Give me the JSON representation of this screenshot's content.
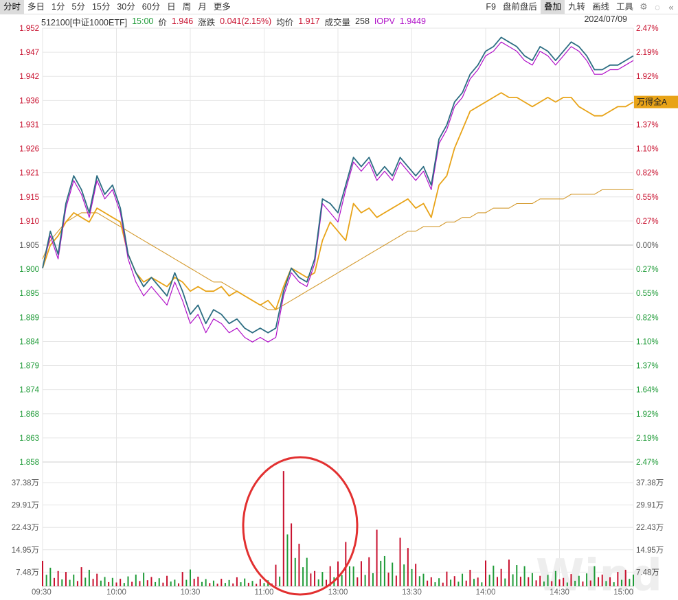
{
  "toolbar": {
    "left": [
      "分时",
      "多日",
      "1分",
      "5分",
      "15分",
      "30分",
      "60分",
      "日",
      "周",
      "月",
      "更多"
    ],
    "right": [
      "F9",
      "盘前盘后",
      "叠加",
      "九转",
      "画线",
      "工具"
    ],
    "active_left": "分时",
    "active_right": "叠加",
    "icons": [
      "gear-icon",
      "circle-icon",
      "collapse-double-chevron-icon"
    ]
  },
  "info": {
    "code_name": "512100[中证1000ETF]",
    "time": "15:00",
    "price_label": "价",
    "price": "1.946",
    "change_label": "涨跌",
    "change": "0.041(2.15%)",
    "avg_label": "均价",
    "avg": "1.917",
    "volume_label": "成交量",
    "volume": "258",
    "iopv_label": "IOPV",
    "iopv": "1.9449",
    "date": "2024/07/09"
  },
  "overlay_tag": "万得全A",
  "watermark": "Wind",
  "colors": {
    "price": "#2c6d82",
    "iopv": "#b010c8",
    "overlay": "#e8a317",
    "average": "#d49a2e",
    "up": "#c8102e",
    "down": "#1f9b38",
    "grid": "#e6e6e6",
    "annotation": "#e23030"
  },
  "chart_data": {
    "type": "line",
    "y_left_ticks": [
      "1.952",
      "1.947",
      "1.942",
      "1.936",
      "1.931",
      "1.926",
      "1.921",
      "1.915",
      "1.910",
      "1.905",
      "1.900",
      "1.895",
      "1.889",
      "1.884",
      "1.879",
      "1.874",
      "1.868",
      "1.863",
      "1.858"
    ],
    "y_right_ticks": [
      "2.47%",
      "2.19%",
      "1.92%",
      "1.64%",
      "1.37%",
      "1.10%",
      "0.82%",
      "0.55%",
      "0.27%",
      "0.00%",
      "0.27%",
      "0.55%",
      "0.82%",
      "1.10%",
      "1.37%",
      "1.64%",
      "1.92%",
      "2.19%",
      "2.47%"
    ],
    "ylim": [
      1.858,
      1.952
    ],
    "reference_price": 1.905,
    "x_ticks": [
      "09:30",
      "10:00",
      "10:30",
      "11:00",
      "13:00",
      "13:30",
      "14:00",
      "14:30",
      "15:00"
    ],
    "volume_ticks": [
      "37.38万",
      "29.91万",
      "22.43万",
      "14.95万",
      "7.48万"
    ],
    "volume_max": 37.38,
    "series": [
      {
        "values": [
          1.9,
          1.908,
          1.903,
          1.914,
          1.92,
          1.917,
          1.912,
          1.92,
          1.916,
          1.918,
          1.913,
          1.903,
          1.899,
          1.896,
          1.898,
          1.896,
          1.894,
          1.899,
          1.895,
          1.89,
          1.892,
          1.888,
          1.891,
          1.89,
          1.888,
          1.889,
          1.887,
          1.886,
          1.887,
          1.886,
          1.887,
          1.895,
          1.9,
          1.898,
          1.897,
          1.902,
          1.915,
          1.914,
          1.912,
          1.918,
          1.924,
          1.922,
          1.924,
          1.92,
          1.922,
          1.92,
          1.924,
          1.922,
          1.92,
          1.922,
          1.918,
          1.928,
          1.931,
          1.936,
          1.938,
          1.942,
          1.944,
          1.947,
          1.948,
          1.95,
          1.949,
          1.948,
          1.946,
          1.945,
          1.948,
          1.947,
          1.945,
          1.947,
          1.949,
          1.948,
          1.946,
          1.943,
          1.943,
          1.944,
          1.944,
          1.945,
          1.946
        ]
      },
      {
        "values": [
          1.9,
          1.907,
          1.902,
          1.913,
          1.919,
          1.916,
          1.911,
          1.919,
          1.915,
          1.917,
          1.912,
          1.902,
          1.897,
          1.894,
          1.896,
          1.894,
          1.892,
          1.897,
          1.893,
          1.888,
          1.89,
          1.886,
          1.889,
          1.888,
          1.886,
          1.887,
          1.885,
          1.884,
          1.885,
          1.884,
          1.885,
          1.894,
          1.899,
          1.897,
          1.896,
          1.901,
          1.914,
          1.912,
          1.91,
          1.917,
          1.923,
          1.921,
          1.923,
          1.919,
          1.921,
          1.919,
          1.923,
          1.921,
          1.919,
          1.921,
          1.917,
          1.927,
          1.93,
          1.935,
          1.937,
          1.941,
          1.943,
          1.946,
          1.947,
          1.949,
          1.948,
          1.947,
          1.945,
          1.944,
          1.947,
          1.946,
          1.944,
          1.946,
          1.948,
          1.947,
          1.945,
          1.942,
          1.942,
          1.943,
          1.943,
          1.944,
          1.945
        ]
      },
      {
        "values": [
          1.9,
          1.905,
          1.907,
          1.91,
          1.912,
          1.911,
          1.91,
          1.913,
          1.912,
          1.911,
          1.91,
          1.903,
          1.899,
          1.897,
          1.898,
          1.897,
          1.896,
          1.898,
          1.897,
          1.895,
          1.896,
          1.895,
          1.895,
          1.896,
          1.894,
          1.895,
          1.894,
          1.893,
          1.892,
          1.893,
          1.891,
          1.896,
          1.9,
          1.899,
          1.898,
          1.899,
          1.906,
          1.91,
          1.908,
          1.906,
          1.914,
          1.912,
          1.913,
          1.911,
          1.912,
          1.913,
          1.914,
          1.915,
          1.913,
          1.914,
          1.911,
          1.918,
          1.92,
          1.926,
          1.93,
          1.934,
          1.935,
          1.936,
          1.937,
          1.938,
          1.937,
          1.937,
          1.936,
          1.935,
          1.936,
          1.937,
          1.936,
          1.937,
          1.937,
          1.935,
          1.934,
          1.933,
          1.933,
          1.934,
          1.935,
          1.935,
          1.936
        ]
      },
      {
        "values": [
          1.902,
          1.906,
          1.908,
          1.91,
          1.911,
          1.912,
          1.912,
          1.912,
          1.911,
          1.91,
          1.909,
          1.908,
          1.907,
          1.906,
          1.905,
          1.904,
          1.903,
          1.902,
          1.901,
          1.9,
          1.899,
          1.898,
          1.897,
          1.897,
          1.896,
          1.895,
          1.894,
          1.893,
          1.892,
          1.891,
          1.891,
          1.892,
          1.893,
          1.894,
          1.895,
          1.896,
          1.897,
          1.898,
          1.899,
          1.9,
          1.901,
          1.902,
          1.903,
          1.904,
          1.905,
          1.906,
          1.907,
          1.908,
          1.908,
          1.909,
          1.909,
          1.909,
          1.91,
          1.91,
          1.911,
          1.911,
          1.912,
          1.912,
          1.913,
          1.913,
          1.913,
          1.914,
          1.914,
          1.914,
          1.915,
          1.915,
          1.915,
          1.915,
          1.916,
          1.916,
          1.916,
          1.916,
          1.917,
          1.917,
          1.917,
          1.917,
          1.917
        ]
      }
    ],
    "volumes": [
      8.5,
      6.2,
      5.1,
      4.8,
      3.9,
      6.4,
      5.5,
      4.2,
      3.1,
      2.8,
      2.5,
      3.3,
      3.9,
      4.5,
      3.1,
      2.7,
      3.5,
      2.2,
      4.8,
      5.6,
      3.2,
      2.4,
      1.9,
      2.5,
      2.1,
      3.0,
      2.6,
      1.8,
      2.4,
      2.0,
      7.2,
      38.5,
      21.0,
      14.2,
      9.5,
      5.1,
      4.8,
      6.7,
      8.3,
      14.8,
      6.6,
      8.4,
      9.7,
      18.9,
      10.1,
      7.9,
      16.2,
      12.8,
      7.5,
      4.2,
      3.0,
      2.7,
      4.9,
      3.4,
      4.2,
      5.5,
      2.9,
      8.6,
      6.9,
      5.8,
      8.9,
      7.1,
      6.7,
      4.4,
      3.5,
      3.8,
      5.1,
      2.8,
      4.1,
      3.5,
      4.3,
      6.7,
      3.9,
      3.0,
      4.8,
      5.5,
      3.9
    ],
    "volume_up": [
      1,
      0,
      1,
      1,
      0,
      1,
      0,
      1,
      0,
      0,
      1,
      0,
      0,
      0,
      1,
      0,
      1,
      0,
      1,
      0,
      1,
      0,
      0,
      1,
      0,
      1,
      0,
      0,
      1,
      0,
      1,
      1,
      1,
      1,
      0,
      1,
      0,
      1,
      1,
      1,
      0,
      1,
      1,
      1,
      0,
      0,
      1,
      1,
      1,
      0,
      1,
      0,
      1,
      1,
      0,
      1,
      1,
      1,
      0,
      1,
      1,
      0,
      0,
      0,
      1,
      0,
      0,
      1,
      1,
      0,
      0,
      0,
      1,
      1,
      1,
      1,
      0
    ]
  }
}
